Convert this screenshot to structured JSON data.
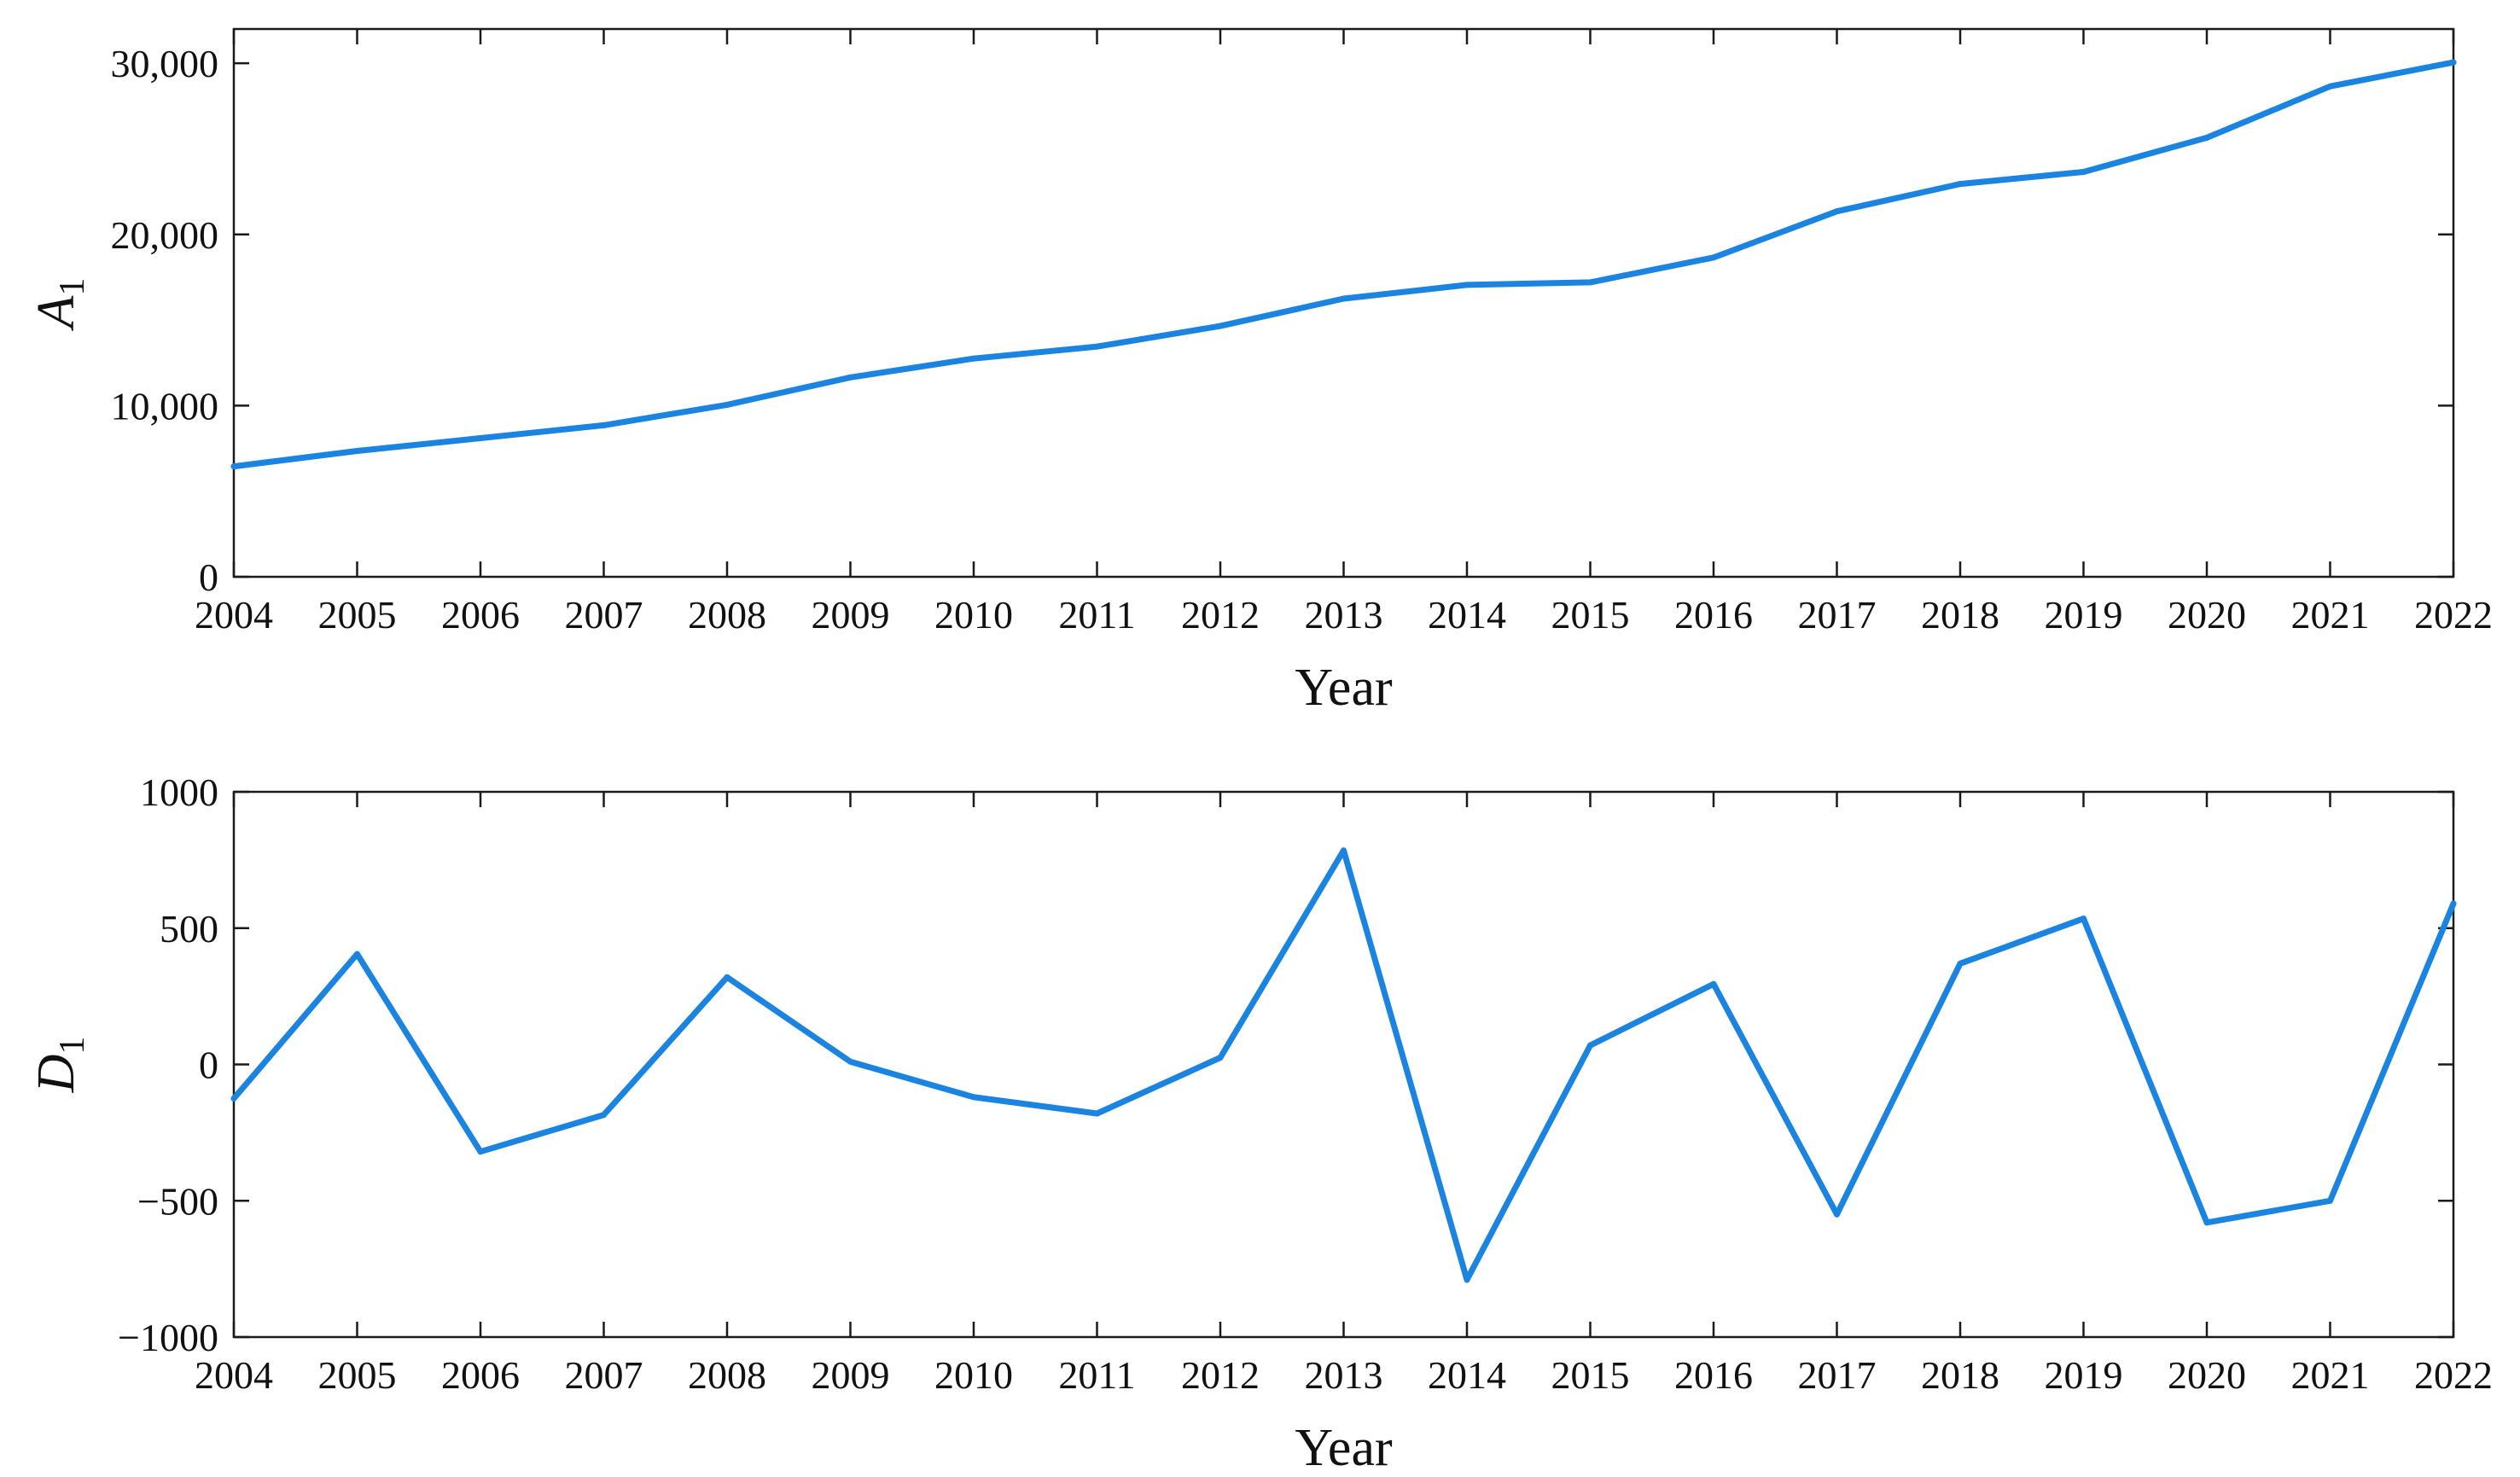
{
  "chart_data": [
    {
      "type": "line",
      "xlabel": "Year",
      "ylabel": "A",
      "ylabel_subscript": "1",
      "ylim": [
        0,
        32000
      ],
      "yticks": [
        0,
        10000,
        20000,
        30000
      ],
      "ytick_labels": [
        "0",
        "10,000",
        "20,000",
        "30,000"
      ],
      "x": [
        2004,
        2005,
        2006,
        2007,
        2008,
        2009,
        2010,
        2011,
        2012,
        2013,
        2014,
        2015,
        2016,
        2017,
        2018,
        2019,
        2020,
        2021,
        2022
      ],
      "xtick_labels": [
        "2004",
        "2005",
        "2006",
        "2007",
        "2008",
        "2009",
        "2010",
        "2011",
        "2012",
        "2013",
        "2014",
        "2015",
        "2016",
        "2017",
        "2018",
        "2019",
        "2020",
        "2021",
        "2022"
      ],
      "series": [
        {
          "color": "#1b84e0",
          "values": [
            6450,
            7350,
            8100,
            8850,
            10050,
            11650,
            12750,
            13450,
            14650,
            16250,
            17050,
            17200,
            18650,
            21350,
            22950,
            23650,
            25650,
            28650,
            30050
          ]
        }
      ],
      "grid": false
    },
    {
      "type": "line",
      "xlabel": "Year",
      "ylabel": "D",
      "ylabel_subscript": "1",
      "ylim": [
        -1000,
        1000
      ],
      "yticks": [
        -1000,
        -500,
        0,
        500,
        1000
      ],
      "ytick_labels": [
        "−1000",
        "−500",
        "0",
        "500",
        "1000"
      ],
      "x": [
        2004,
        2005,
        2006,
        2007,
        2008,
        2009,
        2010,
        2011,
        2012,
        2013,
        2014,
        2015,
        2016,
        2017,
        2018,
        2019,
        2020,
        2021,
        2022
      ],
      "xtick_labels": [
        "2004",
        "2005",
        "2006",
        "2007",
        "2008",
        "2009",
        "2010",
        "2011",
        "2012",
        "2013",
        "2014",
        "2015",
        "2016",
        "2017",
        "2018",
        "2019",
        "2020",
        "2021",
        "2022"
      ],
      "series": [
        {
          "color": "#1b84e0",
          "values": [
            -125,
            405,
            -320,
            -185,
            320,
            10,
            -120,
            -180,
            25,
            785,
            -790,
            70,
            295,
            -550,
            370,
            535,
            -580,
            -500,
            590
          ]
        }
      ],
      "grid": false
    }
  ]
}
